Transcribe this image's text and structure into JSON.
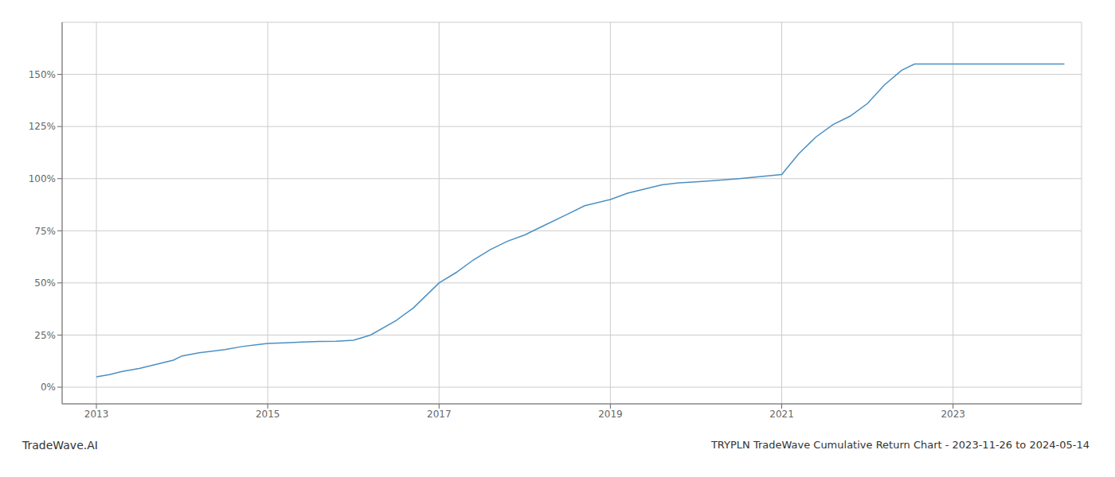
{
  "chart_data": {
    "type": "line",
    "title": "TRYPLN TradeWave Cumulative Return Chart - 2023-11-26 to 2024-05-14",
    "annotations": [
      "TradeWave.AI"
    ],
    "x": [
      2013.0,
      2013.15,
      2013.3,
      2013.5,
      2013.7,
      2013.9,
      2014.0,
      2014.2,
      2014.5,
      2014.7,
      2014.9,
      2015.0,
      2015.2,
      2015.4,
      2015.6,
      2015.8,
      2016.0,
      2016.2,
      2016.5,
      2016.7,
      2017.0,
      2017.2,
      2017.4,
      2017.6,
      2017.8,
      2018.0,
      2018.2,
      2018.5,
      2018.7,
      2019.0,
      2019.2,
      2019.4,
      2019.6,
      2019.8,
      2020.0,
      2020.2,
      2020.5,
      2021.0,
      2021.2,
      2021.4,
      2021.6,
      2021.8,
      2022.0,
      2022.2,
      2022.4,
      2022.55,
      2022.7,
      2023.0,
      2023.5,
      2024.0,
      2024.3
    ],
    "values": [
      5,
      6,
      7.5,
      9,
      11,
      13,
      15,
      16.5,
      18,
      19.5,
      20.5,
      21,
      21.3,
      21.6,
      21.9,
      22,
      22.5,
      25,
      32,
      38,
      50,
      55,
      61,
      66,
      70,
      73,
      77,
      83,
      87,
      90,
      93,
      95,
      97,
      98,
      98.5,
      99,
      100,
      102,
      112,
      120,
      126,
      130,
      136,
      145,
      152,
      155,
      155,
      155,
      155,
      155,
      155
    ],
    "color": "#4a90c4",
    "xlim": [
      2012.6,
      2024.5
    ],
    "xticks": [
      2013,
      2015,
      2017,
      2019,
      2021,
      2023
    ],
    "ylim": [
      -8,
      175
    ],
    "yticks": [
      {
        "value": 0,
        "label": "0%"
      },
      {
        "value": 25,
        "label": "25%"
      },
      {
        "value": 50,
        "label": "50%"
      },
      {
        "value": 75,
        "label": "75%"
      },
      {
        "value": 100,
        "label": "100%"
      },
      {
        "value": 125,
        "label": "125%"
      },
      {
        "value": 150,
        "label": "150%"
      }
    ],
    "grid": true
  }
}
